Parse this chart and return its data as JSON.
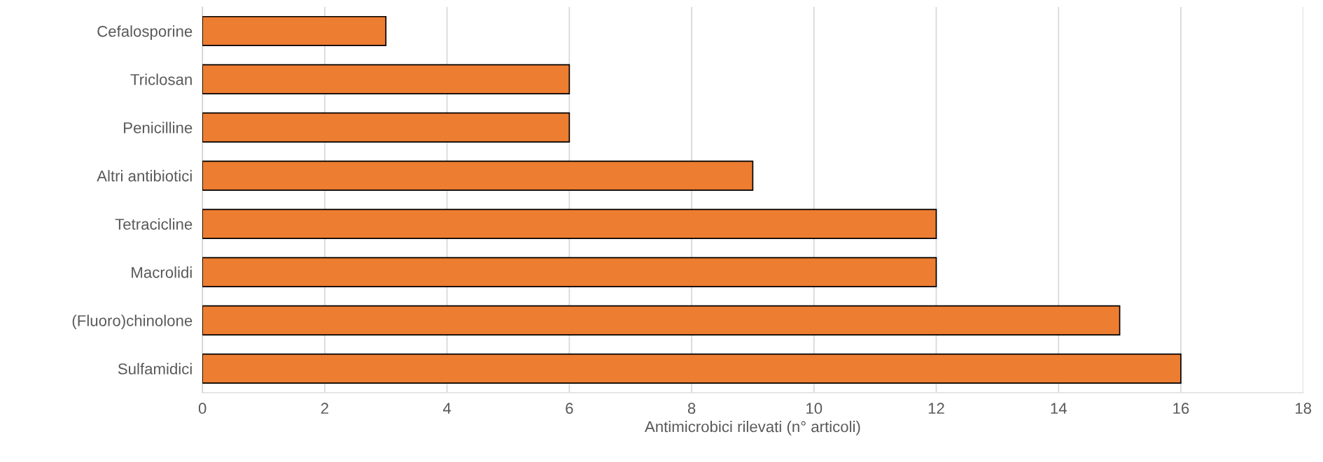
{
  "chart_data": {
    "type": "bar",
    "orientation": "horizontal",
    "xlabel": "Antimicrobici rilevati (n° articoli)",
    "categories": [
      "Cefalosporine",
      "Triclosan",
      "Penicilline",
      "Altri antibiotici",
      "Tetracicline",
      "Macrolidi",
      "(Fluoro)chinolone",
      "Sulfamidici"
    ],
    "values": [
      3,
      6,
      6,
      9,
      12,
      12,
      15,
      16
    ],
    "color": "#ed7d31",
    "xlim": [
      0,
      18
    ],
    "xticks": [
      0,
      2,
      4,
      6,
      8,
      10,
      12,
      14,
      16,
      18
    ],
    "grid": "x"
  }
}
